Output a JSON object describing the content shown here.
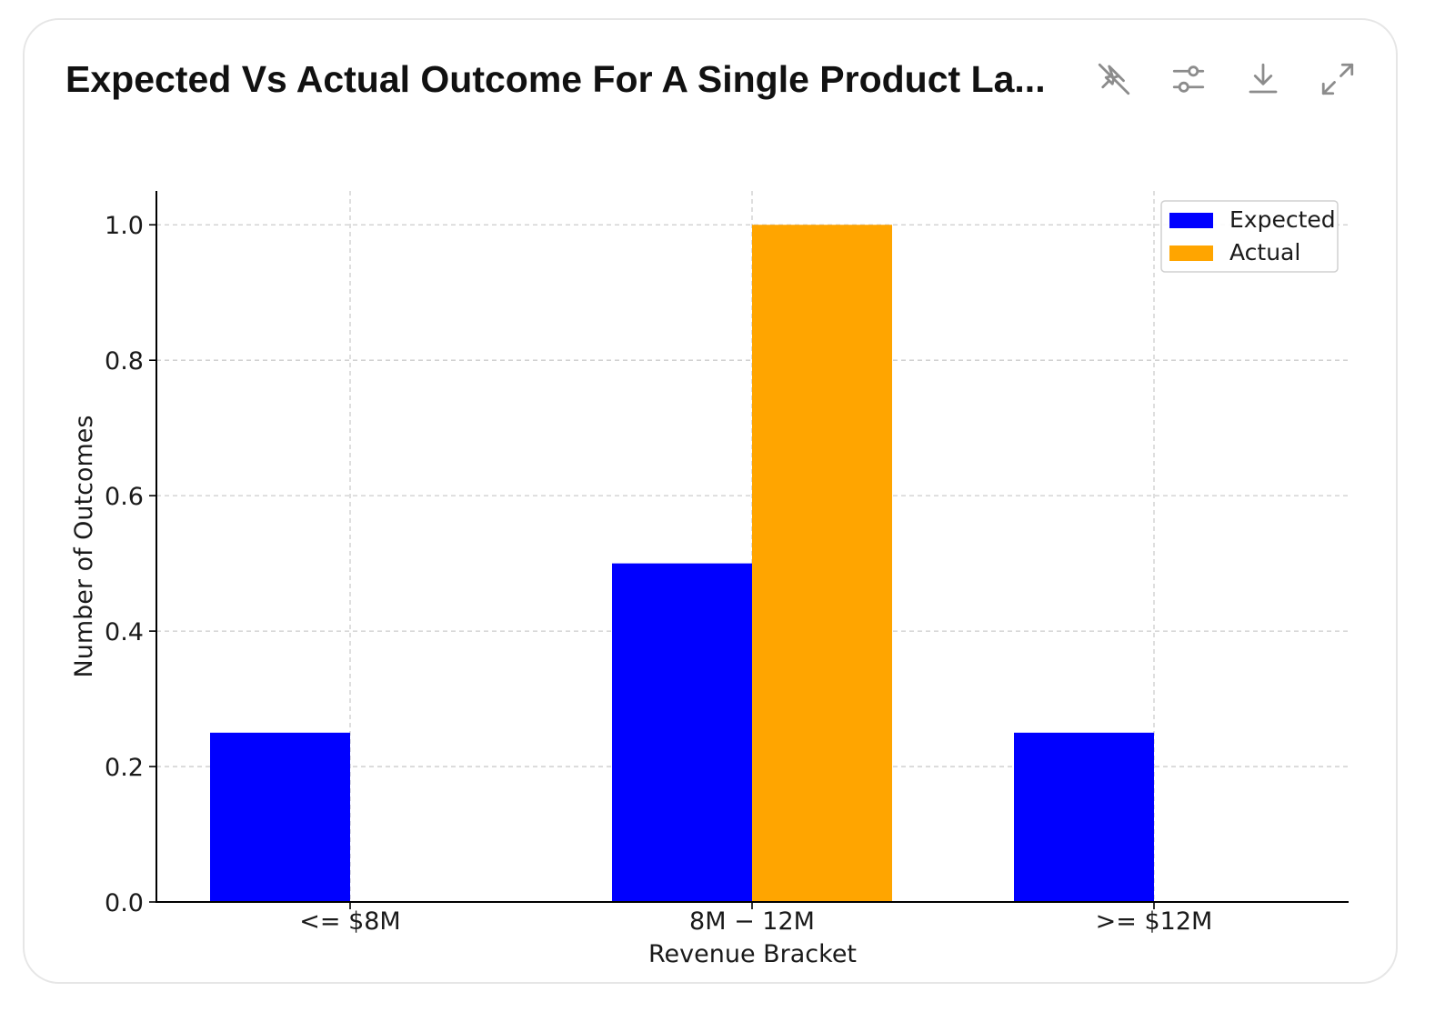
{
  "card": {
    "title": "Expected Vs Actual Outcome For A Single Product La..."
  },
  "toolbar": {
    "icons": [
      "pin-off-icon",
      "sliders-icon",
      "download-icon",
      "expand-icon"
    ]
  },
  "chart_data": {
    "type": "bar",
    "categories": [
      "<= $8M",
      "$8M-$12M",
      ">= $12M"
    ],
    "category_display": [
      "<= $8M",
      "8M − 12M",
      ">= $12M"
    ],
    "series": [
      {
        "name": "Expected",
        "color": "#0000ff",
        "values": [
          0.25,
          0.5,
          0.25
        ]
      },
      {
        "name": "Actual",
        "color": "#ffa500",
        "values": [
          0,
          1.0,
          0
        ]
      }
    ],
    "xlabel": "Revenue Bracket",
    "ylabel": "Number of Outcomes",
    "ylim": [
      0,
      1.05
    ],
    "yticks": [
      0.0,
      0.2,
      0.4,
      0.6,
      0.8,
      1.0
    ],
    "ytick_labels": [
      "0.0",
      "0.2",
      "0.4",
      "0.6",
      "0.8",
      "1.0"
    ],
    "grid": true,
    "legend": "top-right"
  }
}
